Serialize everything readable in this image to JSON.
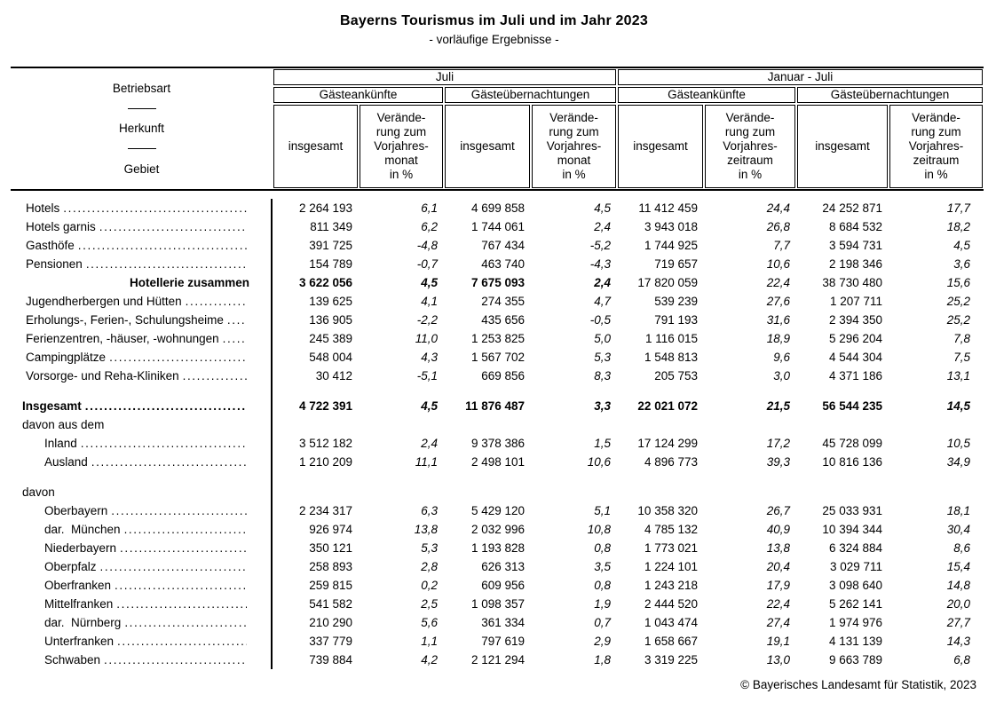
{
  "page": {
    "title": "Bayerns Tourismus im Juli und im Jahr 2023",
    "subtitle": "- vorläufige Ergebnisse -",
    "footer": "© Bayerisches Landesamt für Statistik, 2023"
  },
  "colors": {
    "text": "#000000",
    "background": "#ffffff",
    "rule": "#000000"
  },
  "table": {
    "stub_labels": [
      "Betriebsart",
      "Herkunft",
      "Gebiet"
    ],
    "col_groups": [
      {
        "period": "Juli",
        "subgroups": [
          {
            "label": "Gästeankünfte",
            "cols": [
              "insgesamt",
              "Verände-\nrung zum\nVorjahres-\nmonat\nin %"
            ]
          },
          {
            "label": "Gästeübernachtungen",
            "cols": [
              "insgesamt",
              "Verände-\nrung zum\nVorjahres-\nmonat\nin %"
            ]
          }
        ]
      },
      {
        "period": "Januar - Juli",
        "subgroups": [
          {
            "label": "Gästeankünfte",
            "cols": [
              "insgesamt",
              "Verände-\nrung zum\nVorjahres-\nzeitraum\nin %"
            ]
          },
          {
            "label": "Gästeübernachtungen",
            "cols": [
              "insgesamt",
              "Verände-\nrung zum\nVorjahres-\nzeitraum\nin %"
            ]
          }
        ]
      }
    ],
    "rows": [
      {
        "label": "Hotels",
        "indent": 1,
        "leaders": true,
        "bold": "none",
        "values": [
          "2 264 193",
          "6,1",
          "4 699 858",
          "4,5",
          "11 412 459",
          "24,4",
          "24 252 871",
          "17,7"
        ]
      },
      {
        "label": "Hotels garnis",
        "indent": 1,
        "leaders": true,
        "bold": "none",
        "values": [
          "811 349",
          "6,2",
          "1 744 061",
          "2,4",
          "3 943 018",
          "26,8",
          "8 684 532",
          "18,2"
        ]
      },
      {
        "label": "Gasthöfe",
        "indent": 1,
        "leaders": true,
        "bold": "none",
        "values": [
          "391 725",
          "-4,8",
          "767 434",
          "-5,2",
          "1 744 925",
          "7,7",
          "3 594 731",
          "4,5"
        ]
      },
      {
        "label": "Pensionen",
        "indent": 1,
        "leaders": true,
        "bold": "none",
        "values": [
          "154 789",
          "-0,7",
          "463 740",
          "-4,3",
          "719 657",
          "10,6",
          "2 198 346",
          "3,6"
        ]
      },
      {
        "label": "Hotellerie zusammen",
        "indent": 0,
        "align": "right",
        "leaders": false,
        "bold": "juli",
        "values": [
          "3 622 056",
          "4,5",
          "7 675 093",
          "2,4",
          "17 820 059",
          "22,4",
          "38 730 480",
          "15,6"
        ]
      },
      {
        "label": "Jugendherbergen und Hütten",
        "indent": 1,
        "leaders": true,
        "bold": "none",
        "values": [
          "139 625",
          "4,1",
          "274 355",
          "4,7",
          "539 239",
          "27,6",
          "1 207 711",
          "25,2"
        ]
      },
      {
        "label": "Erholungs-, Ferien-, Schulungsheime",
        "indent": 1,
        "leaders": true,
        "bold": "none",
        "values": [
          "136 905",
          "-2,2",
          "435 656",
          "-0,5",
          "791 193",
          "31,6",
          "2 394 350",
          "25,2"
        ]
      },
      {
        "label": "Ferienzentren, -häuser, -wohnungen",
        "indent": 1,
        "leaders": true,
        "bold": "none",
        "values": [
          "245 389",
          "11,0",
          "1 253 825",
          "5,0",
          "1 116 015",
          "18,9",
          "5 296 204",
          "7,8"
        ]
      },
      {
        "label": "Campingplätze",
        "indent": 1,
        "leaders": true,
        "bold": "none",
        "values": [
          "548 004",
          "4,3",
          "1 567 702",
          "5,3",
          "1 548 813",
          "9,6",
          "4 544 304",
          "7,5"
        ]
      },
      {
        "label": "Vorsorge- und Reha-Kliniken",
        "indent": 1,
        "leaders": true,
        "bold": "none",
        "values": [
          "30 412",
          "-5,1",
          "669 856",
          "8,3",
          "205 753",
          "3,0",
          "4 371 186",
          "13,1"
        ]
      },
      {
        "type": "spacer"
      },
      {
        "label": "Insgesamt",
        "indent": 0,
        "leaders": true,
        "bold": "all",
        "values": [
          "4 722 391",
          "4,5",
          "11 876 487",
          "3,3",
          "22 021 072",
          "21,5",
          "56 544 235",
          "14,5"
        ]
      },
      {
        "label": "davon aus dem",
        "indent": 0,
        "type": "section"
      },
      {
        "label": "Inland",
        "indent": 2,
        "leaders": true,
        "bold": "none",
        "values": [
          "3 512 182",
          "2,4",
          "9 378 386",
          "1,5",
          "17 124 299",
          "17,2",
          "45 728 099",
          "10,5"
        ]
      },
      {
        "label": "Ausland",
        "indent": 2,
        "leaders": true,
        "bold": "none",
        "values": [
          "1 210 209",
          "11,1",
          "2 498 101",
          "10,6",
          "4 896 773",
          "39,3",
          "10 816 136",
          "34,9"
        ]
      },
      {
        "type": "spacer"
      },
      {
        "label": "davon",
        "indent": 0,
        "type": "section"
      },
      {
        "label": "Oberbayern",
        "indent": 2,
        "leaders": true,
        "bold": "none",
        "values": [
          "2 234 317",
          "6,3",
          "5 429 120",
          "5,1",
          "10 358 320",
          "26,7",
          "25 033 931",
          "18,1"
        ]
      },
      {
        "label": "dar.  München",
        "indent": 2,
        "leaders": true,
        "bold": "none",
        "values": [
          "926 974",
          "13,8",
          "2 032 996",
          "10,8",
          "4 785 132",
          "40,9",
          "10 394 344",
          "30,4"
        ]
      },
      {
        "label": "Niederbayern",
        "indent": 2,
        "leaders": true,
        "bold": "none",
        "values": [
          "350 121",
          "5,3",
          "1 193 828",
          "0,8",
          "1 773 021",
          "13,8",
          "6 324 884",
          "8,6"
        ]
      },
      {
        "label": "Oberpfalz",
        "indent": 2,
        "leaders": true,
        "bold": "none",
        "values": [
          "258 893",
          "2,8",
          "626 313",
          "3,5",
          "1 224 101",
          "20,4",
          "3 029 711",
          "15,4"
        ]
      },
      {
        "label": "Oberfranken",
        "indent": 2,
        "leaders": true,
        "bold": "none",
        "values": [
          "259 815",
          "0,2",
          "609 956",
          "0,8",
          "1 243 218",
          "17,9",
          "3 098 640",
          "14,8"
        ]
      },
      {
        "label": "Mittelfranken",
        "indent": 2,
        "leaders": true,
        "bold": "none",
        "values": [
          "541 582",
          "2,5",
          "1 098 357",
          "1,9",
          "2 444 520",
          "22,4",
          "5 262 141",
          "20,0"
        ]
      },
      {
        "label": "dar.  Nürnberg",
        "indent": 2,
        "leaders": true,
        "bold": "none",
        "values": [
          "210 290",
          "5,6",
          "361 334",
          "0,7",
          "1 043 474",
          "27,4",
          "1 974 976",
          "27,7"
        ]
      },
      {
        "label": "Unterfranken",
        "indent": 2,
        "leaders": true,
        "bold": "none",
        "values": [
          "337 779",
          "1,1",
          "797 619",
          "2,9",
          "1 658 667",
          "19,1",
          "4 131 139",
          "14,3"
        ]
      },
      {
        "label": "Schwaben",
        "indent": 2,
        "leaders": true,
        "bold": "none",
        "values": [
          "739 884",
          "4,2",
          "2 121 294",
          "1,8",
          "3 319 225",
          "13,0",
          "9 663 789",
          "6,8"
        ]
      }
    ]
  }
}
